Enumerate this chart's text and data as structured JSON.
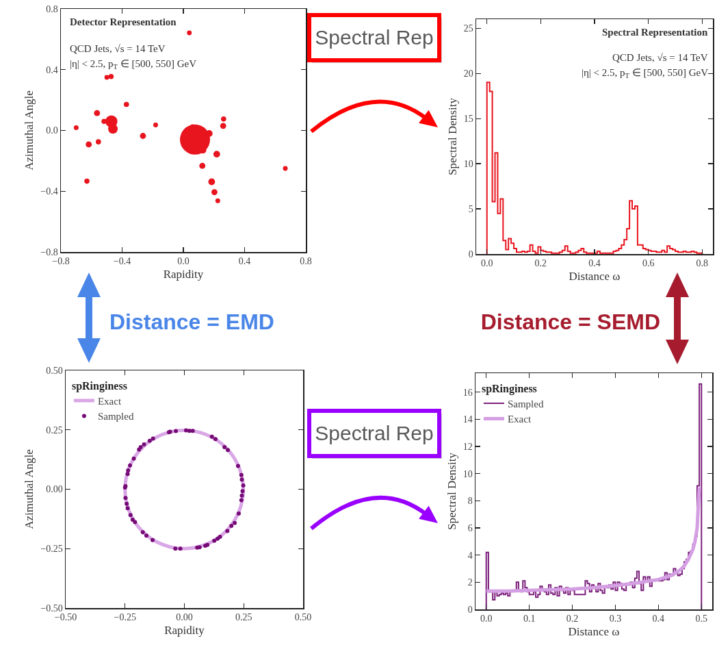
{
  "chart_data": [
    {
      "type": "bubble",
      "title": "Detector Representation",
      "annotations": [
        "QCD Jets, √s = 14 TeV",
        "|η| < 2.5, p$_{T}$ ∈ [500, 550] GeV"
      ],
      "xlabel": "Rapidity",
      "ylabel": "Azimuthal Angle",
      "color": "#e8141e",
      "x": [
        0.076,
        -0.47,
        -0.46,
        0.169,
        0.128,
        0.218,
        0.124,
        0.185,
        0.203,
        0.26,
        0.263,
        0.061,
        -0.564,
        -0.372,
        -0.264,
        -0.618,
        -0.555,
        -0.63,
        -0.472,
        -0.5,
        0.039,
        -0.181,
        -0.518,
        0.666,
        -0.7,
        0.225
      ],
      "values": [
        -0.06,
        0.06,
        0.01,
        -0.02,
        -0.13,
        -0.156,
        -0.233,
        -0.338,
        -0.406,
        0.03,
        0.075,
        0.023,
        0.114,
        0.171,
        -0.036,
        -0.092,
        -0.075,
        -0.334,
        0.355,
        0.349,
        0.642,
        0.036,
        0.06,
        -0.25,
        0.018,
        -0.463
      ],
      "sizes": [
        1,
        0.16,
        0.1,
        0.05,
        0.05,
        0.05,
        0.04,
        0.05,
        0.04,
        0.04,
        0.03,
        0.03,
        0.04,
        0.03,
        0.04,
        0.04,
        0.03,
        0.03,
        0.03,
        0.025,
        0.025,
        0.025,
        0.03,
        0.025,
        0.025,
        0.025
      ],
      "xlim": [
        -0.8,
        0.8
      ],
      "ylim": [
        -0.8,
        0.8
      ],
      "xticks": [
        {
          "value": -0.8,
          "label": "−0.8"
        },
        {
          "value": -0.4,
          "label": "−0.4"
        },
        {
          "value": 0,
          "label": "0.0"
        },
        0.4,
        0.8
      ],
      "yticks": [
        {
          "value": -0.8,
          "label": "−0.8"
        },
        {
          "value": -0.4,
          "label": "−0.4"
        },
        {
          "value": 0,
          "label": "0.0"
        },
        0.4,
        0.8
      ]
    },
    {
      "type": "histogram",
      "title": "Spectral Representation",
      "annotations": [
        "QCD Jets, √s = 14 TeV",
        "|η| < 2.5, p$_{T}$ ∈ [500, 550] GeV"
      ],
      "xlabel": "Distance ω",
      "ylabel": "Spectral Density",
      "color": "#e8141e",
      "bins": [
        0,
        0.01,
        0.02,
        0.03,
        0.04,
        0.05,
        0.06,
        0.07,
        0.08,
        0.09,
        0.1,
        0.11,
        0.12,
        0.13,
        0.14,
        0.15,
        0.16,
        0.17,
        0.18,
        0.19,
        0.2,
        0.21,
        0.22,
        0.23,
        0.24,
        0.25,
        0.26,
        0.27,
        0.28,
        0.29,
        0.3,
        0.31,
        0.32,
        0.33,
        0.34,
        0.35,
        0.36,
        0.37,
        0.38,
        0.39,
        0.4,
        0.41,
        0.42,
        0.43,
        0.44,
        0.45,
        0.46,
        0.47,
        0.48,
        0.49,
        0.5,
        0.51,
        0.52,
        0.53,
        0.54,
        0.55,
        0.56,
        0.57,
        0.58,
        0.59,
        0.6,
        0.61,
        0.62,
        0.63,
        0.64,
        0.65,
        0.66,
        0.67,
        0.68,
        0.69,
        0.7,
        0.71,
        0.72,
        0.73,
        0.74,
        0.75,
        0.76,
        0.77,
        0.78,
        0.79,
        0.8
      ],
      "values": [
        19,
        18,
        5.8,
        11.2,
        4.5,
        6.1,
        1.5,
        0.5,
        1.7,
        1.2,
        0.6,
        0.2,
        0.2,
        0.3,
        0.2,
        0.3,
        1.0,
        0.3,
        0.1,
        0.8,
        0.4,
        0.3,
        0.2,
        0.2,
        0.1,
        0.1,
        0.1,
        0.2,
        0.4,
        0.9,
        0.3,
        0.1,
        0.1,
        0.2,
        0.4,
        0.6,
        0.2,
        0.1,
        0.1,
        0.1,
        0.1,
        0.3,
        0.1,
        0.1,
        0.1,
        0.1,
        0.1,
        0.3,
        0.4,
        0.6,
        1.0,
        1.6,
        2.8,
        5.9,
        5.0,
        5.3,
        1.0,
        1.0,
        0.6,
        0.5,
        0.4,
        0.3,
        0.3,
        0.2,
        0.2,
        0.4,
        0.2,
        0.9,
        0.6,
        0.5,
        0.3,
        0.2,
        0.2,
        0.3,
        0.2,
        0.2,
        0.3,
        0.2,
        0.1,
        0.1
      ],
      "xlim": [
        -0.04,
        0.84
      ],
      "ylim": [
        0,
        26
      ],
      "xticks": [
        {
          "value": 0,
          "label": "0.0"
        },
        0.2,
        0.4,
        0.6,
        0.8
      ],
      "yticks": [
        0,
        5,
        10,
        15,
        20,
        25
      ]
    },
    {
      "type": "scatter",
      "xlabel": "Rapidity",
      "ylabel": "Azimuthal Angle",
      "legend": "top left",
      "legend_title": "spRinginess",
      "series": [
        {
          "name": "Exact",
          "type": "line",
          "color": "#d9a6e6"
        },
        {
          "name": "Sampled",
          "color": "#760a76",
          "x": [
            -0.06,
            -0.036,
            0.007,
            0.021,
            0.035,
            0.116,
            0.131,
            0.169,
            0.183,
            0.226,
            0.24,
            0.242,
            0.248,
            0.245,
            0.242,
            0.24,
            0.229,
            0.212,
            0.198,
            0.181,
            0.15,
            0.14,
            0.126,
            0.097,
            0.088,
            0.064,
            0.054,
            -0.017,
            -0.038,
            -0.134,
            -0.16,
            -0.175,
            -0.208,
            -0.218,
            -0.227,
            -0.239,
            -0.243,
            -0.248,
            -0.25,
            -0.248,
            -0.239,
            -0.237,
            -0.229,
            -0.213,
            -0.191,
            -0.184,
            -0.17,
            -0.146,
            -0.132,
            -0.065
          ],
          "values": [
            0.242,
            0.245,
            0.248,
            0.246,
            0.246,
            0.221,
            0.211,
            0.177,
            0.165,
            0.098,
            0.06,
            0.04,
            0.016,
            -0.008,
            -0.027,
            -0.046,
            -0.102,
            -0.142,
            -0.154,
            -0.176,
            -0.2,
            -0.208,
            -0.217,
            -0.234,
            -0.238,
            -0.244,
            -0.246,
            -0.25,
            -0.25,
            -0.214,
            -0.195,
            -0.181,
            -0.138,
            -0.128,
            -0.109,
            -0.08,
            -0.061,
            -0.037,
            0.007,
            0.013,
            0.064,
            0.079,
            0.1,
            0.129,
            0.167,
            0.177,
            0.189,
            0.204,
            0.213,
            0.24
          ]
        }
      ],
      "xlim": [
        -0.5,
        0.5
      ],
      "ylim": [
        -0.5,
        0.5
      ],
      "xticks": [
        {
          "value": -0.5,
          "label": "−0.50"
        },
        {
          "value": -0.25,
          "label": "−0.25"
        },
        {
          "value": 0,
          "label": "0.00"
        },
        0.25,
        {
          "value": 0.5,
          "label": "0.50"
        }
      ],
      "yticks": [
        {
          "value": -0.5,
          "label": "−0.50"
        },
        {
          "value": -0.25,
          "label": "−0.25"
        },
        {
          "value": 0,
          "label": "0.00"
        },
        0.25,
        {
          "value": 0.5,
          "label": "0.50"
        }
      ]
    },
    {
      "type": "histogram",
      "xlabel": "Distance ω",
      "ylabel": "Spectral Density",
      "legend": "top left",
      "legend_title": "spRinginess",
      "bins": [
        0,
        0.005,
        0.01,
        0.015,
        0.02,
        0.025,
        0.03,
        0.035,
        0.04,
        0.045,
        0.05,
        0.055,
        0.06,
        0.065,
        0.07,
        0.075,
        0.08,
        0.085,
        0.09,
        0.095,
        0.1,
        0.105,
        0.11,
        0.115,
        0.12,
        0.125,
        0.13,
        0.135,
        0.14,
        0.145,
        0.15,
        0.155,
        0.16,
        0.165,
        0.17,
        0.175,
        0.18,
        0.185,
        0.19,
        0.195,
        0.2,
        0.205,
        0.21,
        0.215,
        0.22,
        0.225,
        0.23,
        0.235,
        0.24,
        0.245,
        0.25,
        0.255,
        0.26,
        0.265,
        0.27,
        0.275,
        0.28,
        0.285,
        0.29,
        0.295,
        0.3,
        0.305,
        0.31,
        0.315,
        0.32,
        0.325,
        0.33,
        0.335,
        0.34,
        0.345,
        0.35,
        0.355,
        0.36,
        0.365,
        0.37,
        0.375,
        0.38,
        0.385,
        0.39,
        0.395,
        0.4,
        0.405,
        0.41,
        0.415,
        0.42,
        0.425,
        0.43,
        0.435,
        0.44,
        0.445,
        0.45,
        0.455,
        0.46,
        0.465,
        0.47,
        0.475,
        0.48,
        0.485,
        0.49,
        0.495,
        0.5
      ],
      "series": [
        {
          "name": "Sampled",
          "color": "#7b1f7b",
          "values": [
            4.2,
            1.3,
            1.4,
            0.7,
            1.3,
            1.0,
            1.1,
            1.2,
            1.1,
            1.2,
            1.0,
            1.3,
            1.4,
            1.4,
            2.0,
            1.4,
            1.3,
            2.1,
            1.6,
            1.3,
            1.1,
            1.1,
            1.3,
            0.9,
            1.1,
            1.7,
            1.5,
            1.3,
            1.1,
            1.8,
            1.2,
            1.1,
            1.6,
            1.0,
            1.7,
            1.4,
            1.2,
            1.6,
            1.1,
            1.5,
            1.4,
            1.1,
            1.1,
            1.1,
            1.1,
            1.1,
            2.1,
            1.9,
            1.3,
            1.8,
            1.6,
            1.3,
            1.9,
            1.4,
            1.2,
            1.7,
            1.6,
            1.8,
            1.5,
            2.0,
            1.4,
            2.0,
            1.9,
            1.5,
            1.4,
            1.9,
            1.8,
            2.0,
            1.6,
            2.3,
            2.8,
            1.9,
            1.4,
            2.4,
            2.1,
            2.4,
            1.7,
            2.1,
            2.1,
            2.2,
            2.1,
            2.1,
            2.2,
            2.7,
            2.2,
            2.6,
            2.5,
            3.0,
            2.7,
            2.5,
            2.6,
            3.0,
            3.5,
            3.7,
            4.2,
            4.3,
            4.8,
            5.4,
            9.1,
            16.6
          ]
        },
        {
          "name": "Exact",
          "type": "line",
          "color": "#d49fe3",
          "x": [
            0,
            0.05,
            0.1,
            0.15,
            0.2,
            0.25,
            0.3,
            0.35,
            0.4,
            0.43,
            0.45,
            0.46,
            0.47,
            0.48,
            0.485,
            0.49,
            0.495
          ],
          "values": [
            1.35,
            1.35,
            1.4,
            1.45,
            1.5,
            1.6,
            1.75,
            1.95,
            2.2,
            2.5,
            2.9,
            3.2,
            3.7,
            4.4,
            5.0,
            6.0,
            9.0
          ]
        }
      ],
      "xlim": [
        -0.025,
        0.525
      ],
      "ylim": [
        0,
        17.4
      ],
      "xticks": [
        {
          "value": 0,
          "label": "0.0"
        },
        0.1,
        0.2,
        0.3,
        0.4,
        0.5
      ],
      "yticks": [
        0,
        2,
        4,
        6,
        8,
        10,
        12,
        14,
        16
      ]
    },
    {
      "type": "other",
      "annotations": [
        "Spectral Rep",
        "Spectral Rep",
        "Distance = EMD",
        "Distance = SEMD"
      ]
    }
  ]
}
